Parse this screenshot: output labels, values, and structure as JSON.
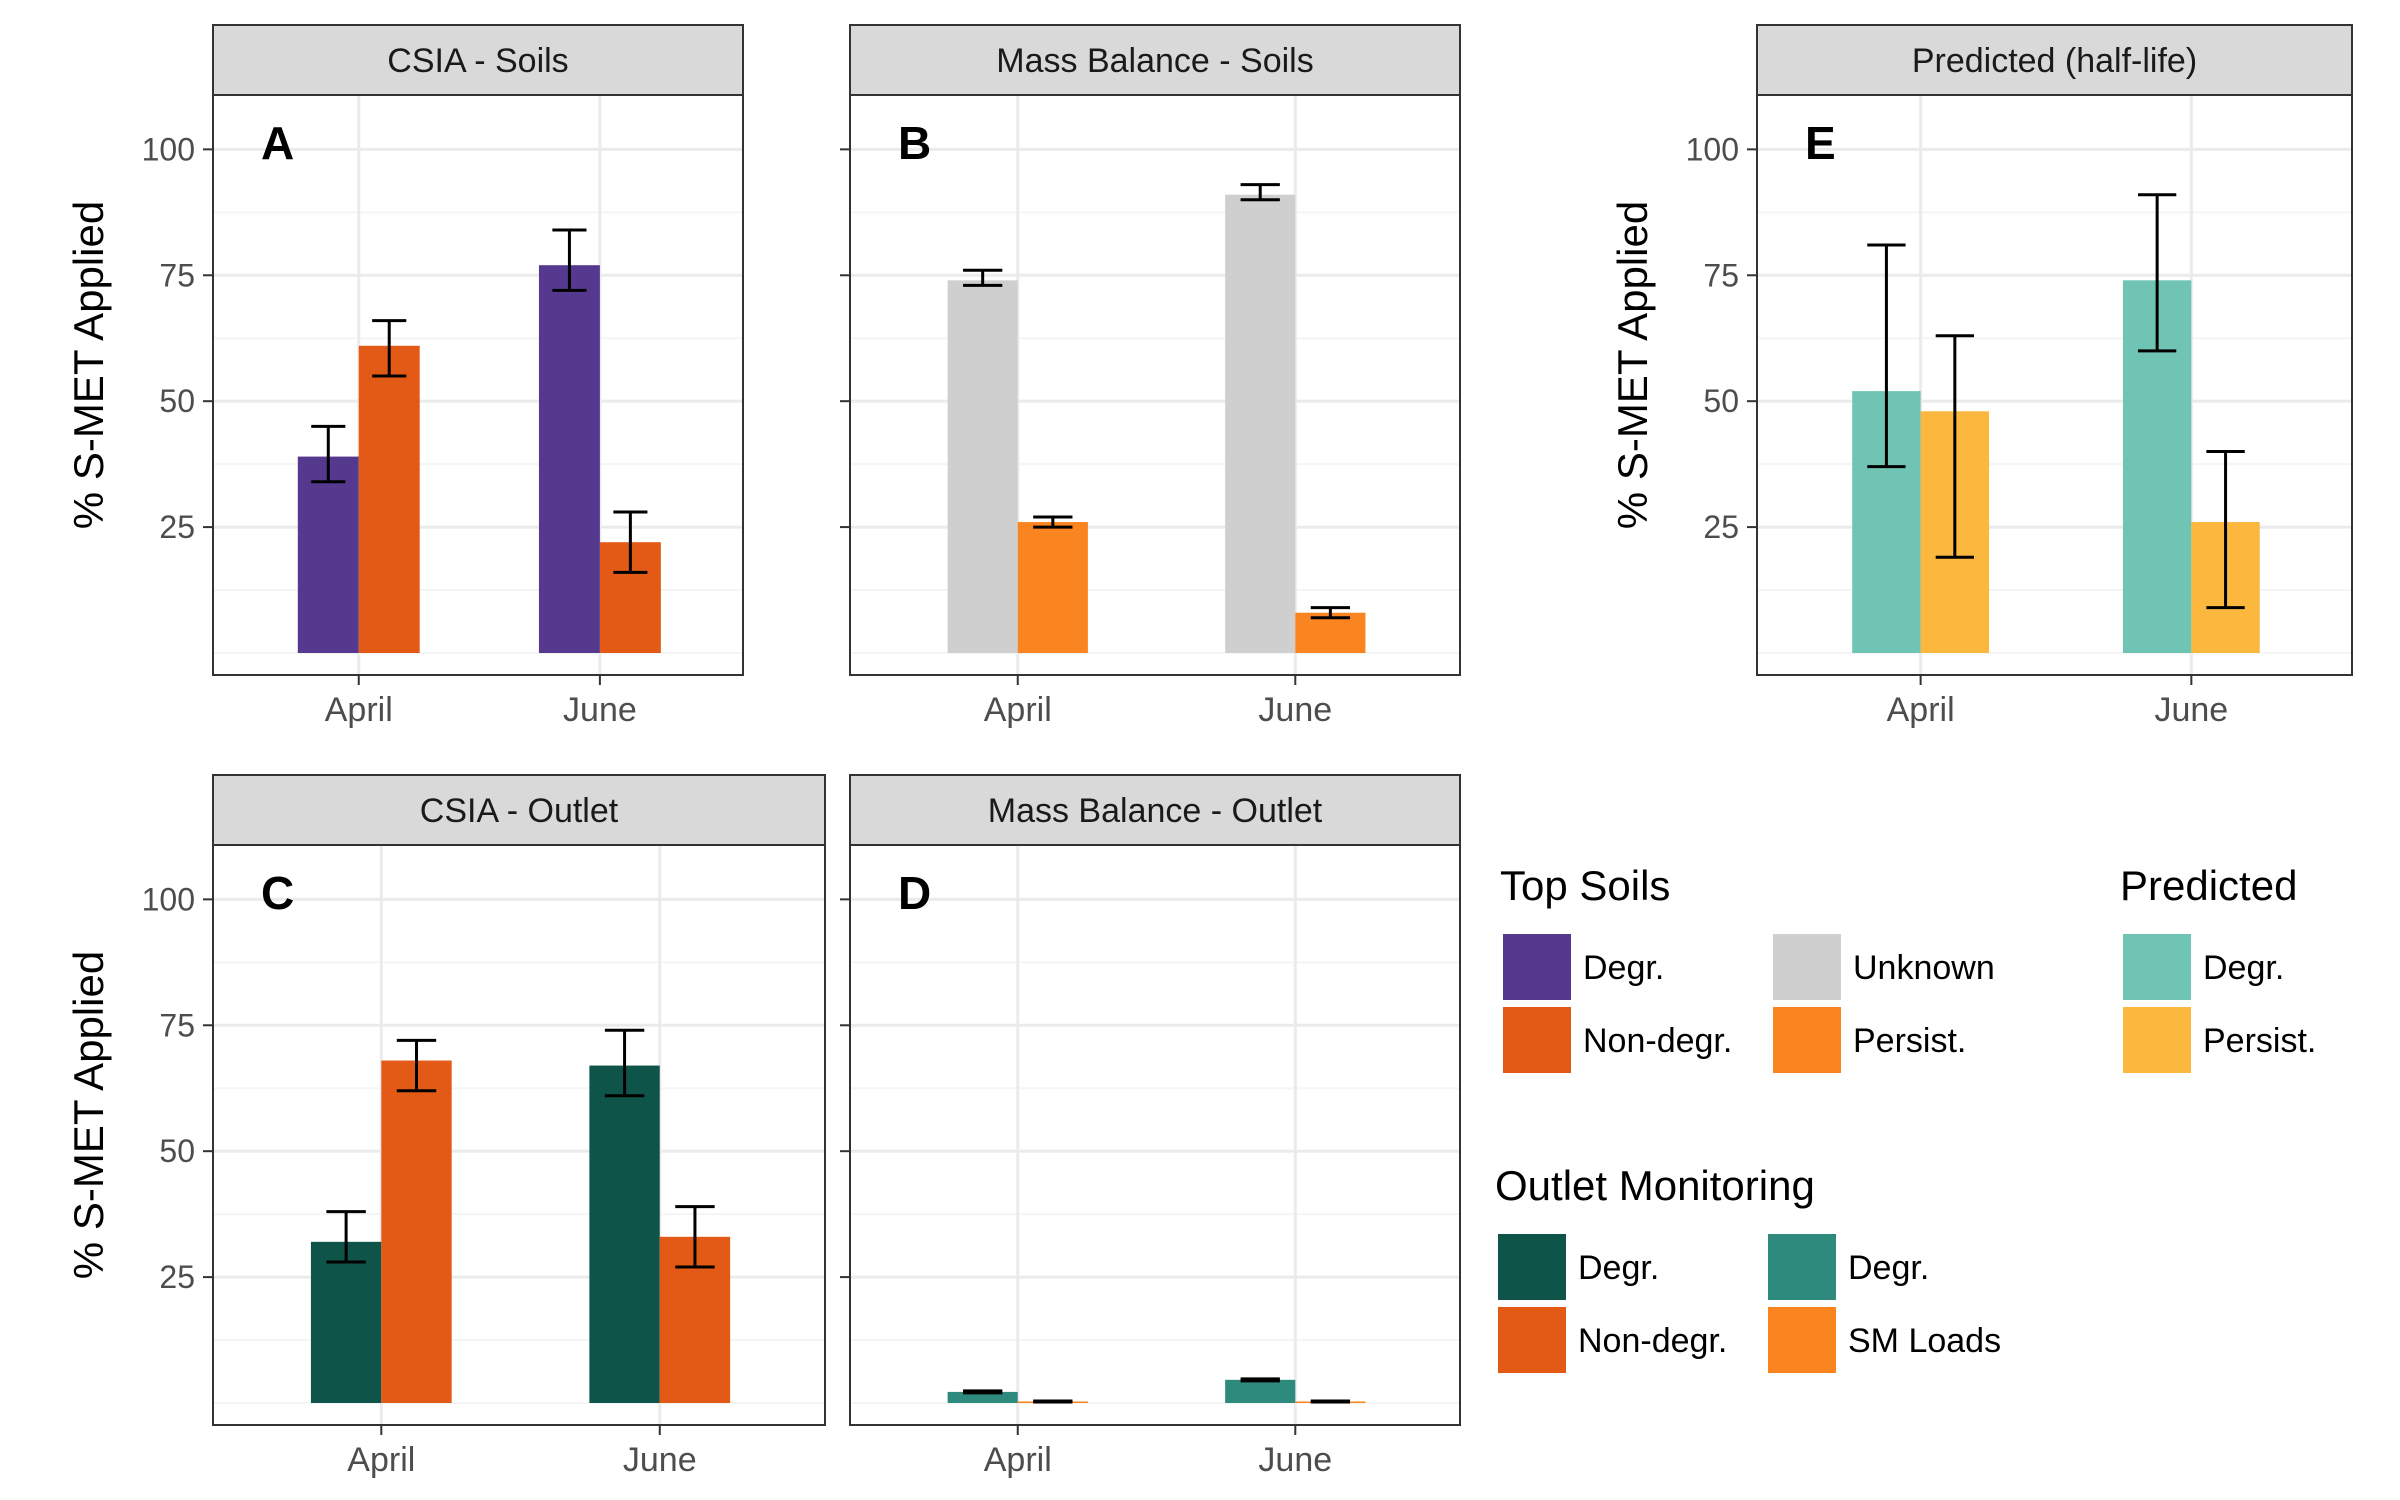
{
  "figure": {
    "colors": {
      "strip_fill": "#d9d9d9",
      "grid_major": "#ebebeb",
      "grid_minor": "#f5f5f5",
      "panel_border": "#333333",
      "axis_text": "#4d4d4d"
    }
  },
  "chart_data": [
    {
      "id": "A",
      "type": "bar",
      "strip": "CSIA - Soils",
      "panel_label": "A",
      "ylabel": "% S-MET Applied",
      "ylim": [
        0,
        110
      ],
      "yticks": [
        25,
        50,
        75,
        100
      ],
      "categories": [
        "April",
        "June"
      ],
      "series": [
        {
          "name": "Degr.",
          "color": "#55398f",
          "values": [
            39,
            77
          ],
          "err_low": [
            34,
            72
          ],
          "err_high": [
            45,
            84
          ]
        },
        {
          "name": "Non-degr.",
          "color": "#e35a16",
          "values": [
            61,
            22
          ],
          "err_low": [
            55,
            16
          ],
          "err_high": [
            66,
            28
          ]
        }
      ],
      "grid": true
    },
    {
      "id": "B",
      "type": "bar",
      "strip": "Mass Balance - Soils",
      "panel_label": "B",
      "ylabel": "",
      "ylim": [
        0,
        110
      ],
      "yticks": [
        25,
        50,
        75,
        100
      ],
      "categories": [
        "April",
        "June"
      ],
      "series": [
        {
          "name": "Unknown",
          "color": "#cfcfcf",
          "values": [
            74,
            91
          ],
          "err_low": [
            73,
            90
          ],
          "err_high": [
            76,
            93
          ]
        },
        {
          "name": "Persist.",
          "color": "#fa8420",
          "values": [
            26,
            8
          ],
          "err_low": [
            25,
            7
          ],
          "err_high": [
            27,
            9
          ]
        }
      ],
      "grid": true
    },
    {
      "id": "E",
      "type": "bar",
      "strip": "Predicted (half-life)",
      "panel_label": "E",
      "ylabel": "% S-MET Applied",
      "ylim": [
        0,
        110
      ],
      "yticks": [
        25,
        50,
        75,
        100
      ],
      "categories": [
        "April",
        "June"
      ],
      "series": [
        {
          "name": "Degr.",
          "color": "#6fc4b3",
          "values": [
            52,
            74
          ],
          "err_low": [
            37,
            60
          ],
          "err_high": [
            81,
            91
          ]
        },
        {
          "name": "Persist.",
          "color": "#fbb73e",
          "values": [
            48,
            26
          ],
          "err_low": [
            19,
            9
          ],
          "err_high": [
            63,
            40
          ]
        }
      ],
      "grid": true
    },
    {
      "id": "C",
      "type": "bar",
      "strip": "CSIA - Outlet",
      "panel_label": "C",
      "ylabel": "% S-MET Applied",
      "ylim": [
        0,
        110
      ],
      "yticks": [
        25,
        50,
        75,
        100
      ],
      "categories": [
        "April",
        "June"
      ],
      "series": [
        {
          "name": "Degr.",
          "color": "#0e5449",
          "values": [
            32,
            67
          ],
          "err_low": [
            28,
            61
          ],
          "err_high": [
            38,
            74
          ]
        },
        {
          "name": "Non-degr.",
          "color": "#e35a16",
          "values": [
            68,
            33
          ],
          "err_low": [
            62,
            27
          ],
          "err_high": [
            72,
            39
          ]
        }
      ],
      "grid": true
    },
    {
      "id": "D",
      "type": "bar",
      "strip": "Mass Balance - Outlet",
      "panel_label": "D",
      "ylabel": "",
      "ylim": [
        0,
        110
      ],
      "yticks": [
        25,
        50,
        75,
        100
      ],
      "categories": [
        "April",
        "June"
      ],
      "series": [
        {
          "name": "Degr.",
          "color": "#2e8a7d",
          "values": [
            2.2,
            4.6
          ],
          "err_low": [
            2.0,
            4.4
          ],
          "err_high": [
            2.4,
            4.8
          ]
        },
        {
          "name": "SM Loads",
          "color": "#fa8420",
          "values": [
            0.3,
            0.3
          ],
          "err_low": [
            0.2,
            0.2
          ],
          "err_high": [
            0.4,
            0.4
          ]
        }
      ],
      "grid": true
    }
  ],
  "legends": [
    {
      "id": "top-soils",
      "title": "Top Soils",
      "items": [
        {
          "label": "Degr.",
          "color": "#55398f"
        },
        {
          "label": "Non-degr.",
          "color": "#e35a16"
        },
        {
          "label": "Unknown",
          "color": "#cfcfcf"
        },
        {
          "label": "Persist.",
          "color": "#fa8420"
        }
      ]
    },
    {
      "id": "predicted",
      "title": "Predicted",
      "items": [
        {
          "label": "Degr.",
          "color": "#6fc4b3"
        },
        {
          "label": "Persist.",
          "color": "#fbb73e"
        }
      ]
    },
    {
      "id": "outlet-monitoring",
      "title": "Outlet Monitoring",
      "items": [
        {
          "label": "Degr.",
          "color": "#0e5449"
        },
        {
          "label": "Non-degr.",
          "color": "#e35a16"
        },
        {
          "label": "Degr.",
          "color": "#2e8a7d"
        },
        {
          "label": "SM Loads",
          "color": "#fa8420"
        }
      ]
    }
  ]
}
